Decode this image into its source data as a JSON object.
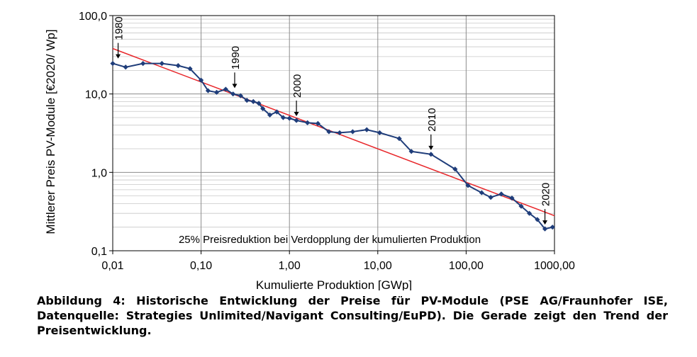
{
  "chart_data": {
    "type": "line",
    "x_scale": "log",
    "y_scale": "log",
    "xlim": [
      0.01,
      1000
    ],
    "ylim": [
      0.1,
      100
    ],
    "xlabel": "Kumulierte Produktion [GWp]",
    "ylabel": "Mittlerer Preis PV-Module [€2020/ Wp]",
    "x_ticks": [
      0.01,
      0.1,
      1,
      10,
      100,
      1000
    ],
    "x_tick_labels": [
      "0,01",
      "0,10",
      "1,00",
      "10,00",
      "100,00",
      "1000,00"
    ],
    "y_ticks": [
      0.1,
      1,
      10,
      100
    ],
    "y_tick_labels": [
      "0,1",
      "1,0",
      "10,0",
      "100,0"
    ],
    "grid": true,
    "annotation": "25% Preisreduktion bei Verdopplung der kumulierten Produktion",
    "year_markers": [
      {
        "label": "1980",
        "x": 0.0115,
        "y": 25
      },
      {
        "label": "1990",
        "x": 0.24,
        "y": 10.5
      },
      {
        "label": "2000",
        "x": 1.2,
        "y": 4.6
      },
      {
        "label": "2010",
        "x": 40,
        "y": 1.7
      },
      {
        "label": "2020",
        "x": 780,
        "y": 0.19
      }
    ],
    "series": [
      {
        "name": "",
        "color": "#1f3d7a",
        "points": [
          [
            0.01,
            24.5
          ],
          [
            0.014,
            22
          ],
          [
            0.022,
            24.5
          ],
          [
            0.036,
            24.5
          ],
          [
            0.055,
            23
          ],
          [
            0.075,
            21
          ],
          [
            0.1,
            15
          ],
          [
            0.12,
            11
          ],
          [
            0.15,
            10.5
          ],
          [
            0.19,
            11.5
          ],
          [
            0.23,
            10
          ],
          [
            0.28,
            9.5
          ],
          [
            0.33,
            8.3
          ],
          [
            0.39,
            8.0
          ],
          [
            0.45,
            7.6
          ],
          [
            0.5,
            6.5
          ],
          [
            0.6,
            5.4
          ],
          [
            0.72,
            5.9
          ],
          [
            0.85,
            5.0
          ],
          [
            1.0,
            4.9
          ],
          [
            1.2,
            4.6
          ],
          [
            1.6,
            4.3
          ],
          [
            2.1,
            4.2
          ],
          [
            2.8,
            3.3
          ],
          [
            3.7,
            3.2
          ],
          [
            5.2,
            3.3
          ],
          [
            7.5,
            3.5
          ],
          [
            10.5,
            3.2
          ],
          [
            17.5,
            2.7
          ],
          [
            24,
            1.85
          ],
          [
            40,
            1.7
          ],
          [
            75,
            1.1
          ],
          [
            105,
            0.68
          ],
          [
            150,
            0.55
          ],
          [
            190,
            0.48
          ],
          [
            250,
            0.53
          ],
          [
            330,
            0.47
          ],
          [
            420,
            0.37
          ],
          [
            520,
            0.3
          ],
          [
            640,
            0.25
          ],
          [
            780,
            0.19
          ],
          [
            950,
            0.2
          ]
        ]
      },
      {
        "name": "",
        "color": "#e8262a",
        "points": [
          [
            0.01,
            38
          ],
          [
            1000,
            0.28
          ]
        ]
      }
    ]
  },
  "caption": "Abbildung 4: Historische Entwicklung der Preise für PV-Module (PSE AG/Fraunhofer ISE, Datenquelle: Strategies Unlimited/Navigant Consulting/EuPD). Die Gerade zeigt den Trend der Preisentwicklung."
}
